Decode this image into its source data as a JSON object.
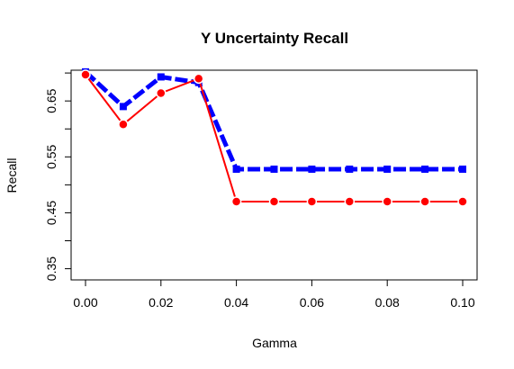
{
  "chart_data": {
    "type": "line",
    "title": "Y Uncertainty Recall",
    "xlabel": "Gamma",
    "ylabel": "Recall",
    "x": [
      0.0,
      0.01,
      0.02,
      0.03,
      0.04,
      0.05,
      0.06,
      0.07,
      0.08,
      0.09,
      0.1
    ],
    "xlim": [
      0.0,
      0.1
    ],
    "ylim": [
      0.33,
      0.705
    ],
    "x_ticks": [
      0.0,
      0.02,
      0.04,
      0.06,
      0.08,
      0.1
    ],
    "x_tick_labels": [
      "0.00",
      "0.02",
      "0.04",
      "0.06",
      "0.08",
      "0.10"
    ],
    "y_ticks": [
      0.35,
      0.4,
      0.45,
      0.5,
      0.55,
      0.6,
      0.65,
      0.7
    ],
    "y_tick_labels": [
      "0.35",
      "",
      "0.45",
      "",
      "0.55",
      "",
      "0.65",
      ""
    ],
    "grid": false,
    "series": [
      {
        "color": "#0000FF",
        "line_style": "dashed",
        "marker": "square",
        "values": [
          0.702,
          0.64,
          0.693,
          0.683,
          0.528,
          0.528,
          0.528,
          0.528,
          0.528,
          0.528,
          0.528
        ]
      },
      {
        "color": "#FF0000",
        "line_style": "solid",
        "marker": "circle",
        "values": [
          0.697,
          0.608,
          0.664,
          0.69,
          0.47,
          0.47,
          0.47,
          0.47,
          0.47,
          0.47,
          0.47
        ]
      }
    ]
  }
}
